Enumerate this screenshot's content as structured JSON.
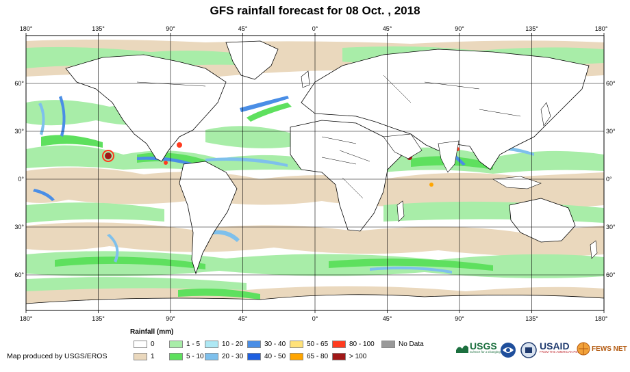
{
  "title": "GFS rainfall forecast for 08 Oct. , 2018",
  "map": {
    "lon_labels": [
      "180°",
      "135°",
      "90°",
      "45°",
      "0°",
      "45°",
      "90°",
      "135°",
      "180°"
    ],
    "lat_labels": [
      "60°",
      "30°",
      "0°",
      "30°",
      "60°"
    ]
  },
  "legend": {
    "title": "Rainfall (mm)",
    "items": [
      {
        "label": "0",
        "color": "#ffffff"
      },
      {
        "label": "1",
        "color": "#ead8bd"
      },
      {
        "label": "1 - 5",
        "color": "#a8eda8"
      },
      {
        "label": "5 - 10",
        "color": "#5ee05e"
      },
      {
        "label": "10 - 20",
        "color": "#aee8f4"
      },
      {
        "label": "20 - 30",
        "color": "#7ec0ec"
      },
      {
        "label": "30 - 40",
        "color": "#4a8ee6"
      },
      {
        "label": "40 - 50",
        "color": "#1e5fe0"
      },
      {
        "label": "50 - 65",
        "color": "#ffe27a"
      },
      {
        "label": "65 - 80",
        "color": "#ffa500"
      },
      {
        "label": "80 - 100",
        "color": "#ff3b1f"
      },
      {
        "label": "> 100",
        "color": "#a01818"
      },
      {
        "label": "No Data",
        "color": "#999999"
      }
    ]
  },
  "credit": "Map produced by USGS/EROS",
  "logos": {
    "usgs": "USGS",
    "usgs_tagline": "science for a changing world",
    "usaid": "USAID",
    "usaid_tagline": "FROM THE AMERICAN PEOPLE",
    "fewsnet": "FEWS NET"
  }
}
